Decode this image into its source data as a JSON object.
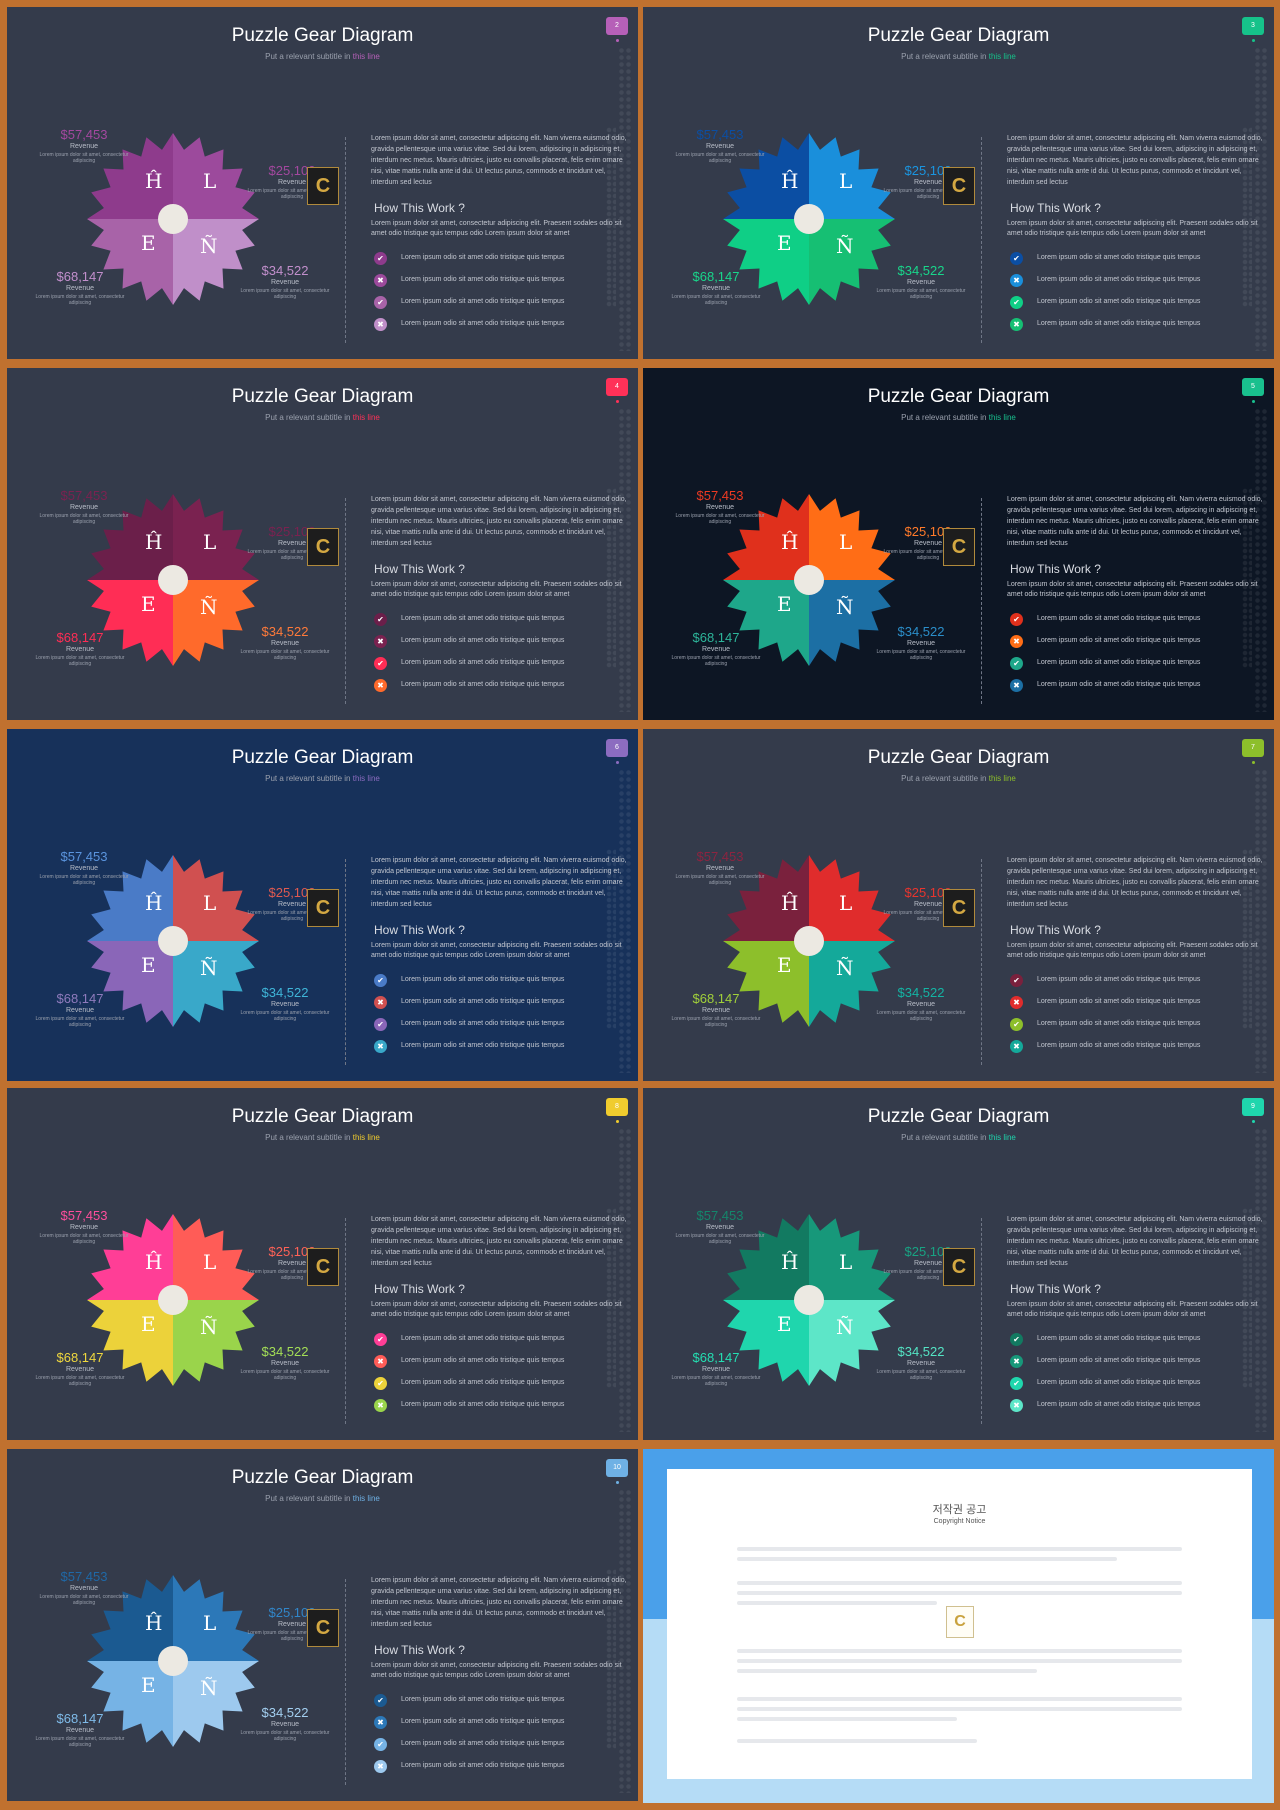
{
  "title": "Puzzle Gear Diagram",
  "subtitle_prefix": "Put a relevant subtitle in ",
  "subtitle_highlight": "this line",
  "letters": [
    "Ĥ",
    "L",
    "E",
    "Ñ"
  ],
  "stats": [
    {
      "value": "$57,453",
      "label": "Revenue",
      "desc": "Lorem ipsum dolor sit amet, consectetur adipiscing"
    },
    {
      "value": "$25,100",
      "label": "Revenue",
      "desc": "Lorem ipsum dolor sit amet, consectetur adipiscing"
    },
    {
      "value": "$68,147",
      "label": "Revenue",
      "desc": "Lorem ipsum dolor sit amet, consectetur adipiscing"
    },
    {
      "value": "$34,522",
      "label": "Revenue",
      "desc": "Lorem ipsum dolor sit amet, consectetur adipiscing"
    }
  ],
  "paragraph": "Lorem ipsum dolor sit amet, consectetur adipiscing elit. Nam viverra euismod odio, gravida pellentesque urna varius vitae. Sed dui lorem, adipiscing in adipiscing et, interdum nec metus. Mauris ultricies, justo eu convallis placerat, felis enim ornare nisi, vitae mattis nulla ante id dui. Ut lectus purus, commodo et tincidunt vel, interdum sed lectus",
  "how_title": "How This Work ?",
  "how_text": "Lorem ipsum dolor sit amet, consectetur adipiscing elit. Praesent sodales odio sit amet odio tristique quis tempus odio Lorem ipsum dolor sit amet",
  "check_text": "Lorem ipsum odio sit amet odio tristique quis tempus",
  "logo_letter": "C",
  "slides": [
    {
      "page": "2",
      "bg": "#343b4b",
      "accent": "#b660b8",
      "colors": [
        "#8e3b8c",
        "#9c4a9c",
        "#a863a8",
        "#c08fc9"
      ],
      "statColors": [
        "#a3489f",
        "#a3489f",
        "#c28fcc",
        "#c28fcc"
      ],
      "marks": [
        "✔",
        "✖",
        "✔",
        "✖"
      ]
    },
    {
      "page": "3",
      "bg": "#343b4b",
      "accent": "#16c28a",
      "colors": [
        "#0b4ea3",
        "#1a8fdb",
        "#0fcf86",
        "#16bf73"
      ],
      "statColors": [
        "#0b4ea3",
        "#1a95e0",
        "#19d68b",
        "#19d68b"
      ],
      "marks": [
        "✔",
        "✖",
        "✔",
        "✖"
      ]
    },
    {
      "page": "4",
      "bg": "#343b4b",
      "accent": "#ff3158",
      "colors": [
        "#6b1f4a",
        "#7a2250",
        "#ff2d55",
        "#ff6a2b"
      ],
      "statColors": [
        "#7a2250",
        "#7a2250",
        "#ff2d55",
        "#ff7a3a"
      ],
      "marks": [
        "✔",
        "✖",
        "✔",
        "✖"
      ]
    },
    {
      "page": "5",
      "bg": "#0d1624",
      "accent": "#19c08e",
      "colors": [
        "#e0301c",
        "#ff6d16",
        "#1ea78a",
        "#1c6fa4"
      ],
      "statColors": [
        "#ef3a22",
        "#ff7a2a",
        "#2db59a",
        "#2b8ec9"
      ],
      "marks": [
        "✔",
        "✖",
        "✔",
        "✖"
      ]
    },
    {
      "page": "6",
      "bg": "#17315a",
      "accent": "#8c6cc0",
      "colors": [
        "#4a7bc7",
        "#d05050",
        "#8a66b8",
        "#39a8c9"
      ],
      "statColors": [
        "#5a94de",
        "#e05a50",
        "#8f7bbd",
        "#3fb5d8"
      ],
      "marks": [
        "✔",
        "✖",
        "✔",
        "✖"
      ]
    },
    {
      "page": "7",
      "bg": "#343b4b",
      "accent": "#8dbf2b",
      "colors": [
        "#7a213d",
        "#e02c2c",
        "#8dbf2b",
        "#14a99a"
      ],
      "statColors": [
        "#8c2440",
        "#e8352e",
        "#a1d03a",
        "#14b4a4"
      ],
      "marks": [
        "✔",
        "✖",
        "✔",
        "✖"
      ]
    },
    {
      "page": "8",
      "bg": "#343b4b",
      "accent": "#f0cc2e",
      "colors": [
        "#ff3e96",
        "#ff5c57",
        "#ecd23a",
        "#9ad44b"
      ],
      "statColors": [
        "#ff4e9c",
        "#ff6257",
        "#f0d83e",
        "#a4df56"
      ],
      "marks": [
        "✔",
        "✖",
        "✔",
        "✖"
      ]
    },
    {
      "page": "9",
      "bg": "#343b4b",
      "accent": "#1fd6ad",
      "colors": [
        "#127a61",
        "#17987a",
        "#1fd6ad",
        "#5de6c8"
      ],
      "statColors": [
        "#14866b",
        "#18a383",
        "#24dfb2",
        "#54e4c4"
      ],
      "marks": [
        "✔",
        "✖",
        "✔",
        "✖"
      ]
    },
    {
      "page": "10",
      "bg": "#343b4b",
      "accent": "#6fb1e5",
      "colors": [
        "#1b5a91",
        "#2c78b8",
        "#76b3e5",
        "#9dc9ee"
      ],
      "statColors": [
        "#1f68a6",
        "#3186c9",
        "#7fbbe9",
        "#a3cff0"
      ],
      "marks": [
        "✔",
        "✖",
        "✔",
        "✖"
      ]
    }
  ],
  "copyright": {
    "title": "저작권 공고",
    "subtitle": "Copyright Notice"
  }
}
